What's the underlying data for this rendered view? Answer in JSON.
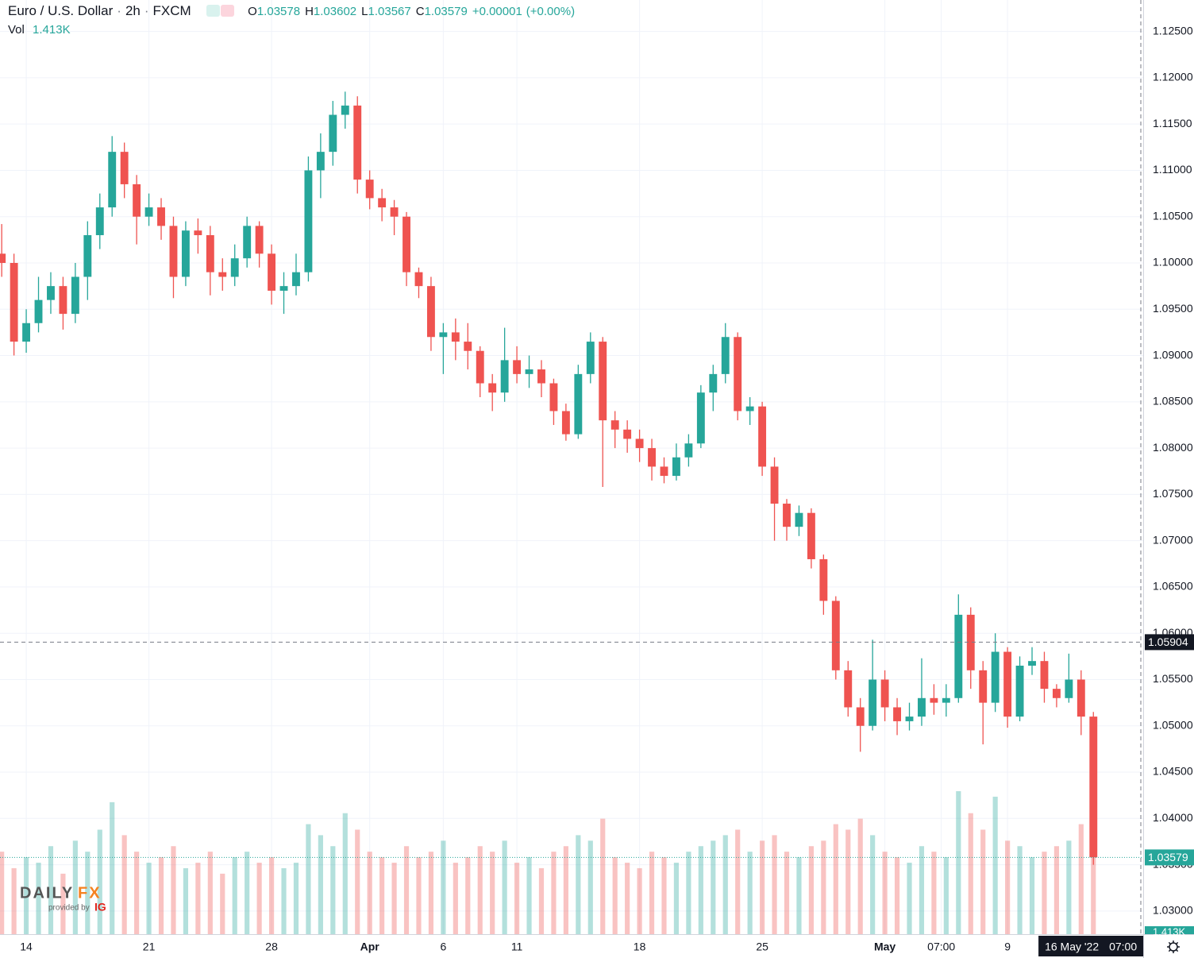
{
  "chart_data": {
    "type": "candlestick",
    "header": {
      "symbol": "Euro / U.S. Dollar",
      "interval": "2h",
      "exchange": "FXCM",
      "ohlc": [
        {
          "label": "O",
          "value": 1.03578
        },
        {
          "label": "H",
          "value": 1.03602
        },
        {
          "label": "L",
          "value": 1.03567
        },
        {
          "label": "C",
          "value": 1.03579
        }
      ],
      "change": "+0.00001",
      "change_pct": "(+0.00%)"
    },
    "x": [
      -1,
      -0.5,
      0,
      0.5,
      1,
      1.5,
      2,
      2.5,
      3,
      3.5,
      4,
      4.5,
      5,
      5.5,
      6,
      6.5,
      7,
      7.5,
      8,
      8.5,
      9,
      9.5,
      10,
      10.5,
      11,
      11.5,
      12,
      12.5,
      13,
      13.5,
      14,
      14.5,
      15,
      15.5,
      16,
      16.5,
      17,
      17.5,
      18,
      18.5,
      19,
      19.5,
      20,
      20.5,
      21,
      21.5,
      22,
      22.5,
      23,
      23.5,
      24,
      24.5,
      25,
      25.5,
      26,
      26.5,
      27,
      27.5,
      28,
      28.5,
      29,
      29.5,
      30,
      30.5,
      31,
      31.5,
      32,
      32.5,
      33,
      33.5,
      34,
      34.5,
      35,
      35.5,
      36,
      36.5,
      37,
      37.5,
      38,
      38.5,
      39,
      39.5,
      40,
      40.5,
      41,
      41.5,
      42,
      42.5,
      43,
      43.5
    ],
    "open": [
      1.101,
      1.1,
      1.0915,
      1.0935,
      1.096,
      1.0975,
      1.0945,
      1.0985,
      1.103,
      1.106,
      1.112,
      1.1085,
      1.105,
      1.106,
      1.104,
      1.0985,
      1.1035,
      1.103,
      1.099,
      1.0985,
      1.1005,
      1.104,
      1.101,
      1.097,
      1.0975,
      1.099,
      1.11,
      1.112,
      1.116,
      1.117,
      1.109,
      1.107,
      1.106,
      1.105,
      1.099,
      1.0975,
      1.092,
      1.0925,
      1.0915,
      1.0905,
      1.087,
      1.086,
      1.0895,
      1.088,
      1.0885,
      1.087,
      1.084,
      1.0815,
      1.088,
      1.0915,
      1.083,
      1.082,
      1.081,
      1.08,
      1.078,
      1.077,
      1.079,
      1.0805,
      1.086,
      1.088,
      1.092,
      1.084,
      1.0845,
      1.078,
      1.074,
      1.0715,
      1.073,
      1.068,
      1.0635,
      1.056,
      1.052,
      1.05,
      1.055,
      1.052,
      1.0505,
      1.051,
      1.053,
      1.0525,
      1.053,
      1.062,
      1.056,
      1.0525,
      1.058,
      1.051,
      1.0565,
      1.057,
      1.054,
      1.053,
      1.055,
      1.051
    ],
    "high": [
      1.1042,
      1.101,
      1.095,
      1.0985,
      1.099,
      1.0985,
      1.1,
      1.1045,
      1.1075,
      1.1137,
      1.113,
      1.1095,
      1.1075,
      1.107,
      1.105,
      1.1045,
      1.1048,
      1.104,
      1.1005,
      1.102,
      1.105,
      1.1045,
      1.102,
      1.099,
      1.101,
      1.1115,
      1.114,
      1.1175,
      1.1185,
      1.118,
      1.11,
      1.108,
      1.1068,
      1.1055,
      1.0995,
      1.0985,
      1.0935,
      1.094,
      1.0935,
      1.091,
      1.088,
      1.093,
      1.091,
      1.09,
      1.0895,
      1.0875,
      1.0848,
      1.089,
      1.0925,
      1.092,
      1.084,
      1.083,
      1.082,
      1.081,
      1.079,
      1.0805,
      1.0815,
      1.0868,
      1.089,
      1.0935,
      1.0925,
      1.0855,
      1.085,
      1.079,
      1.0745,
      1.0738,
      1.0735,
      1.0685,
      1.064,
      1.057,
      1.053,
      1.0593,
      1.056,
      1.053,
      1.0525,
      1.0573,
      1.0545,
      1.0545,
      1.0642,
      1.0628,
      1.057,
      1.06,
      1.0585,
      1.0575,
      1.0585,
      1.058,
      1.0545,
      1.0578,
      1.056,
      1.0515
    ],
    "low": [
      1.0985,
      1.09,
      1.0903,
      1.0925,
      1.0945,
      1.0928,
      1.0935,
      1.096,
      1.1015,
      1.105,
      1.107,
      1.102,
      1.104,
      1.1025,
      1.0962,
      1.0975,
      1.101,
      1.0965,
      1.097,
      1.0975,
      1.0995,
      1.0995,
      1.0955,
      1.0945,
      1.0965,
      1.098,
      1.107,
      1.1105,
      1.1145,
      1.1075,
      1.1058,
      1.1045,
      1.103,
      1.0975,
      1.0962,
      1.0905,
      1.088,
      1.0895,
      1.0885,
      1.0855,
      1.084,
      1.085,
      1.087,
      1.0865,
      1.0855,
      1.0825,
      1.0808,
      1.081,
      1.087,
      1.0758,
      1.08,
      1.0795,
      1.0785,
      1.0765,
      1.0762,
      1.0765,
      1.078,
      1.08,
      1.084,
      1.087,
      1.083,
      1.0825,
      1.077,
      1.07,
      1.07,
      1.0705,
      1.067,
      1.062,
      1.055,
      1.051,
      1.0472,
      1.0495,
      1.0505,
      1.049,
      1.0495,
      1.05,
      1.0512,
      1.051,
      1.0525,
      1.054,
      1.048,
      1.0515,
      1.0498,
      1.0505,
      1.0555,
      1.0525,
      1.052,
      1.0525,
      1.049,
      1.035
    ],
    "close": [
      1.1,
      1.0915,
      1.0935,
      1.096,
      1.0975,
      1.0945,
      1.0985,
      1.103,
      1.106,
      1.112,
      1.1085,
      1.105,
      1.106,
      1.104,
      1.0985,
      1.1035,
      1.103,
      1.099,
      1.0985,
      1.1005,
      1.104,
      1.101,
      1.097,
      1.0975,
      1.099,
      1.11,
      1.112,
      1.116,
      1.117,
      1.109,
      1.107,
      1.106,
      1.105,
      1.099,
      1.0975,
      1.092,
      1.0925,
      1.0915,
      1.0905,
      1.087,
      1.086,
      1.0895,
      1.088,
      1.0885,
      1.087,
      1.084,
      1.0815,
      1.088,
      1.0915,
      1.083,
      1.082,
      1.081,
      1.08,
      1.078,
      1.077,
      1.079,
      1.0805,
      1.086,
      1.088,
      1.092,
      1.084,
      1.0845,
      1.078,
      1.074,
      1.0715,
      1.073,
      1.068,
      1.0635,
      1.056,
      1.052,
      1.05,
      1.055,
      1.052,
      1.0505,
      1.051,
      1.053,
      1.0525,
      1.053,
      1.062,
      1.056,
      1.0525,
      1.058,
      1.051,
      1.0565,
      1.057,
      1.054,
      1.053,
      1.055,
      1.051,
      1.0358
    ],
    "up_color": "#26a69a",
    "down_color": "#ef5350",
    "volume": {
      "name": "Vol",
      "last_label": "1.413K",
      "values": [
        1500,
        1200,
        1400,
        1300,
        1600,
        1100,
        1700,
        1500,
        1900,
        2400,
        1800,
        1500,
        1300,
        1400,
        1600,
        1200,
        1300,
        1500,
        1100,
        1400,
        1500,
        1300,
        1400,
        1200,
        1300,
        2000,
        1800,
        1600,
        2200,
        1900,
        1500,
        1400,
        1300,
        1600,
        1400,
        1500,
        1700,
        1300,
        1400,
        1600,
        1500,
        1700,
        1300,
        1400,
        1200,
        1500,
        1600,
        1800,
        1700,
        2100,
        1400,
        1300,
        1200,
        1500,
        1400,
        1300,
        1500,
        1600,
        1700,
        1800,
        1900,
        1500,
        1700,
        1800,
        1500,
        1400,
        1600,
        1700,
        2000,
        1900,
        2100,
        1800,
        1500,
        1400,
        1300,
        1600,
        1500,
        1400,
        2600,
        2200,
        1900,
        2500,
        1700,
        1600,
        1400,
        1500,
        1600,
        1700,
        2000,
        1413
      ]
    },
    "xlim": [
      -1.07,
      45.53
    ],
    "xticks": [
      {
        "value": 0,
        "label": "14"
      },
      {
        "value": 5,
        "label": "21"
      },
      {
        "value": 10,
        "label": "28"
      },
      {
        "value": 14,
        "label": "Apr"
      },
      {
        "value": 17,
        "label": "6"
      },
      {
        "value": 20,
        "label": "11"
      },
      {
        "value": 25,
        "label": "18"
      },
      {
        "value": 30,
        "label": "25"
      },
      {
        "value": 35,
        "label": "May"
      },
      {
        "value": 37.3,
        "label": "07:00"
      },
      {
        "value": 40,
        "label": "9"
      }
    ],
    "ylim": [
      1.0275,
      1.1284
    ],
    "yticks": [
      {
        "value": 1.125,
        "label": "1.12500"
      },
      {
        "value": 1.12,
        "label": "1.12000"
      },
      {
        "value": 1.115,
        "label": "1.11500"
      },
      {
        "value": 1.11,
        "label": "1.11000"
      },
      {
        "value": 1.105,
        "label": "1.10500"
      },
      {
        "value": 1.1,
        "label": "1.10000"
      },
      {
        "value": 1.095,
        "label": "1.09500"
      },
      {
        "value": 1.09,
        "label": "1.09000"
      },
      {
        "value": 1.085,
        "label": "1.08500"
      },
      {
        "value": 1.08,
        "label": "1.08000"
      },
      {
        "value": 1.075,
        "label": "1.07500"
      },
      {
        "value": 1.07,
        "label": "1.07000"
      },
      {
        "value": 1.065,
        "label": "1.06500"
      },
      {
        "value": 1.06,
        "label": "1.06000"
      },
      {
        "value": 1.055,
        "label": "1.05500"
      },
      {
        "value": 1.05,
        "label": "1.05000"
      },
      {
        "value": 1.045,
        "label": "1.04500"
      },
      {
        "value": 1.04,
        "label": "1.04000"
      },
      {
        "value": 1.035,
        "label": "1.03500"
      },
      {
        "value": 1.03,
        "label": "1.03000"
      }
    ],
    "grid": true,
    "last_price": {
      "value": 1.03579,
      "label": "1.03579"
    },
    "crosshair": {
      "y": {
        "value": 1.05904,
        "label": "1.05904"
      },
      "x": {
        "value": 43.3,
        "label": "16 May '22",
        "time": "07:00"
      }
    },
    "logo": {
      "brand": "DAILY",
      "brand_fx": "FX",
      "provided": "provided by",
      "partner": "IG"
    }
  }
}
